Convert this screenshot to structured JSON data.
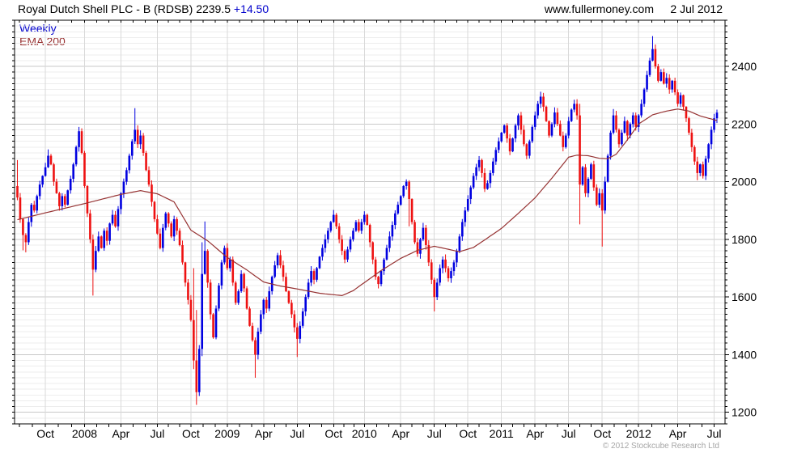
{
  "header": {
    "title_main": "Royal Dutch Shell PLC - B (RDSB) ",
    "title_price": "2239.5 ",
    "title_change": "+14.50",
    "site": "www.fullermoney.com",
    "date": "2 Jul 2012"
  },
  "legend": {
    "series1": "Weekly",
    "series2": "EMA 200"
  },
  "footer": {
    "copyright": "© 2012 Stockcube Research Ltd"
  },
  "colors": {
    "up": "#0000e0",
    "down": "#ee1111",
    "ema": "#963232",
    "grid_minor": "#ededed",
    "grid_major": "#c9c9c9",
    "grid_vert": "#d9d9d9",
    "axis": "#000000",
    "label": "#000000",
    "legend_weekly": "#0000cc",
    "legend_ema": "#993333",
    "title_change": "#0000cc",
    "copyright": "#a6a6a6"
  },
  "chart_data": {
    "type": "candlestick",
    "title": "Royal Dutch Shell PLC - B (RDSB) weekly candles with 200-period EMA",
    "interval": "Weekly",
    "overlay": "EMA 200",
    "ylim": [
      1160,
      2560
    ],
    "y_major_step": 200,
    "y_minor_step": 20,
    "y_tick_labels": [
      "2400",
      "2200",
      "2000",
      "1800",
      "1600",
      "1400",
      "1200"
    ],
    "x_ticks": [
      {
        "label": "Oct",
        "week": 10
      },
      {
        "label": "2008",
        "week": 24
      },
      {
        "label": "Apr",
        "week": 37
      },
      {
        "label": "Jul",
        "week": 50
      },
      {
        "label": "Oct",
        "week": 62
      },
      {
        "label": "2009",
        "week": 75
      },
      {
        "label": "Apr",
        "week": 88
      },
      {
        "label": "Jul",
        "week": 100
      },
      {
        "label": "Oct",
        "week": 113
      },
      {
        "label": "2010",
        "week": 124
      },
      {
        "label": "Apr",
        "week": 137
      },
      {
        "label": "Jul",
        "week": 149
      },
      {
        "label": "Oct",
        "week": 161
      },
      {
        "label": "2011",
        "week": 173
      },
      {
        "label": "Apr",
        "week": 185
      },
      {
        "label": "Jul",
        "week": 197
      },
      {
        "label": "Oct",
        "week": 209
      },
      {
        "label": "2012",
        "week": 222
      },
      {
        "label": "Apr",
        "week": 236
      },
      {
        "label": "Jul",
        "week": 249
      }
    ],
    "first_open": 1985,
    "last_close": 2239.5,
    "last_change": 14.5,
    "wick_seed": 42,
    "closes": [
      1945,
      1870,
      1815,
      1790,
      1860,
      1920,
      1900,
      1950,
      1990,
      2020,
      2050,
      2090,
      2060,
      2000,
      1960,
      1915,
      1950,
      1920,
      1970,
      2010,
      2060,
      2120,
      2175,
      2100,
      1985,
      1890,
      1800,
      1695,
      1760,
      1810,
      1770,
      1830,
      1795,
      1855,
      1885,
      1845,
      1905,
      1960,
      2000,
      2040,
      2090,
      2140,
      2180,
      2130,
      2160,
      2100,
      2040,
      1990,
      1930,
      1870,
      1820,
      1770,
      1840,
      1890,
      1855,
      1810,
      1870,
      1830,
      1780,
      1720,
      1650,
      1590,
      1520,
      1380,
      1270,
      1420,
      1680,
      1760,
      1650,
      1540,
      1460,
      1560,
      1640,
      1720,
      1770,
      1700,
      1730,
      1650,
      1580,
      1620,
      1680,
      1630,
      1560,
      1500,
      1450,
      1400,
      1480,
      1540,
      1590,
      1560,
      1620,
      1670,
      1710,
      1745,
      1710,
      1670,
      1620,
      1580,
      1540,
      1495,
      1455,
      1500,
      1550,
      1600,
      1650,
      1690,
      1660,
      1700,
      1740,
      1770,
      1800,
      1830,
      1860,
      1885,
      1845,
      1800,
      1760,
      1730,
      1765,
      1800,
      1830,
      1860,
      1830,
      1860,
      1885,
      1850,
      1790,
      1730,
      1670,
      1645,
      1690,
      1730,
      1770,
      1810,
      1850,
      1890,
      1920,
      1950,
      1985,
      2000,
      1940,
      1860,
      1790,
      1750,
      1800,
      1840,
      1780,
      1720,
      1660,
      1600,
      1650,
      1700,
      1730,
      1700,
      1665,
      1690,
      1720,
      1760,
      1810,
      1860,
      1900,
      1940,
      1980,
      2020,
      2050,
      2075,
      2030,
      1975,
      1995,
      2030,
      2070,
      2110,
      2140,
      2170,
      2195,
      2150,
      2105,
      2150,
      2195,
      2230,
      2180,
      2130,
      2090,
      2140,
      2190,
      2230,
      2270,
      2295,
      2260,
      2210,
      2160,
      2200,
      2240,
      2200,
      2160,
      2120,
      2160,
      2210,
      2250,
      2270,
      2230,
      1990,
      2050,
      1960,
      2010,
      2060,
      1980,
      1920,
      1960,
      1900,
      2000,
      2090,
      2170,
      2230,
      2180,
      2130,
      2170,
      2210,
      2160,
      2200,
      2230,
      2190,
      2230,
      2270,
      2320,
      2370,
      2420,
      2460,
      2400,
      2350,
      2380,
      2340,
      2360,
      2320,
      2350,
      2310,
      2270,
      2300,
      2260,
      2220,
      2170,
      2120,
      2070,
      2030,
      2060,
      2020,
      2080,
      2130,
      2180,
      2220,
      2239.5
    ],
    "extremes": {
      "0": [
        2075,
        null
      ],
      "2": [
        null,
        1762
      ],
      "3": [
        null,
        1755
      ],
      "11": [
        2112,
        null
      ],
      "22": [
        2190,
        null
      ],
      "27": [
        null,
        1605
      ],
      "42": [
        2255,
        null
      ],
      "63": [
        1700,
        1350
      ],
      "64": [
        1555,
        1226
      ],
      "66": [
        1790,
        1395
      ],
      "67": [
        1862,
        null
      ],
      "85": [
        null,
        1320
      ],
      "100": [
        null,
        1392
      ],
      "113": [
        1902,
        null
      ],
      "139": [
        2008,
        null
      ],
      "140": [
        2005,
        1845
      ],
      "149": [
        null,
        1550
      ],
      "187": [
        2312,
        null
      ],
      "201": [
        2270,
        1852
      ],
      "209": [
        null,
        1775
      ],
      "213": [
        2252,
        null
      ],
      "227": [
        2505,
        null
      ],
      "243": [
        null,
        2005
      ],
      "250": [
        2250,
        null
      ]
    },
    "ema_points": [
      [
        0,
        1868
      ],
      [
        10,
        1892
      ],
      [
        24,
        1924
      ],
      [
        37,
        1956
      ],
      [
        44,
        1969
      ],
      [
        50,
        1958
      ],
      [
        56,
        1930
      ],
      [
        62,
        1832
      ],
      [
        68,
        1795
      ],
      [
        75,
        1737
      ],
      [
        82,
        1694
      ],
      [
        88,
        1652
      ],
      [
        94,
        1638
      ],
      [
        100,
        1628
      ],
      [
        108,
        1613
      ],
      [
        116,
        1605
      ],
      [
        120,
        1622
      ],
      [
        124,
        1650
      ],
      [
        130,
        1692
      ],
      [
        137,
        1734
      ],
      [
        143,
        1762
      ],
      [
        149,
        1776
      ],
      [
        152,
        1770
      ],
      [
        158,
        1757
      ],
      [
        163,
        1772
      ],
      [
        167,
        1798
      ],
      [
        173,
        1838
      ],
      [
        179,
        1890
      ],
      [
        185,
        1944
      ],
      [
        191,
        2012
      ],
      [
        197,
        2085
      ],
      [
        200,
        2092
      ],
      [
        204,
        2090
      ],
      [
        208,
        2081
      ],
      [
        211,
        2080
      ],
      [
        214,
        2095
      ],
      [
        218,
        2145
      ],
      [
        222,
        2200
      ],
      [
        227,
        2232
      ],
      [
        232,
        2245
      ],
      [
        236,
        2252
      ],
      [
        240,
        2245
      ],
      [
        244,
        2228
      ],
      [
        247,
        2220
      ],
      [
        250,
        2212
      ]
    ]
  }
}
